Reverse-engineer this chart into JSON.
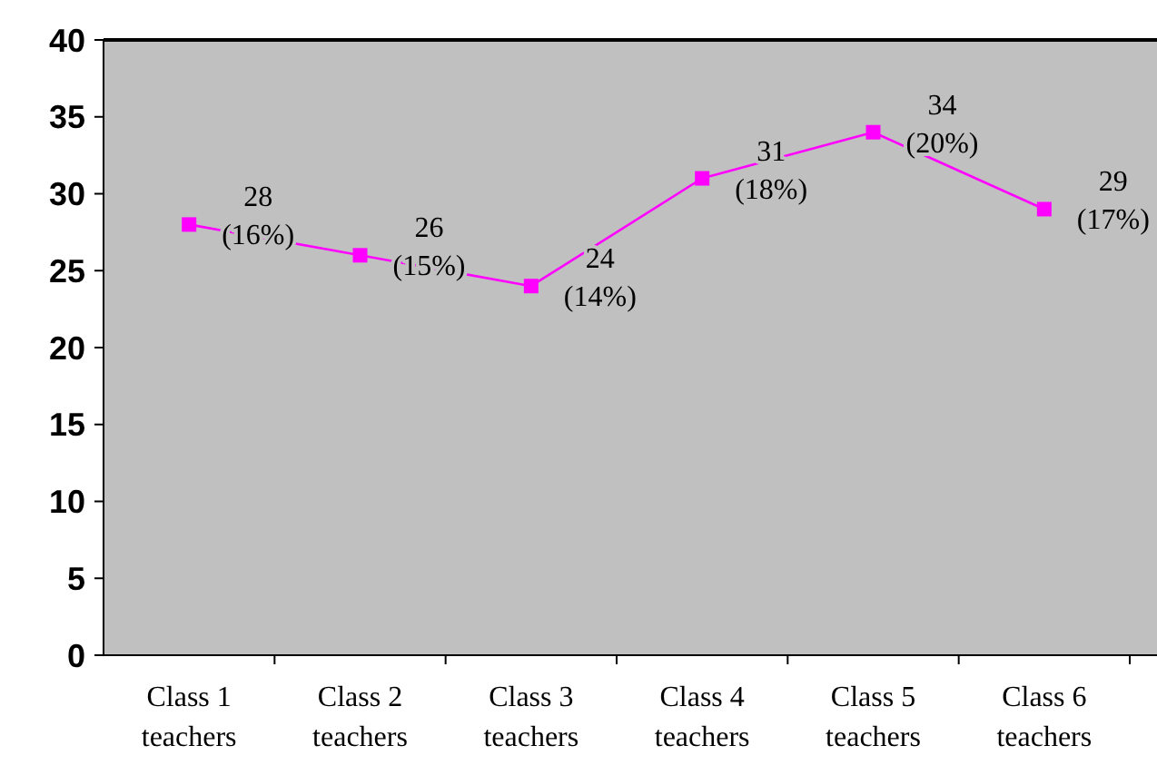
{
  "chart_data": {
    "type": "line",
    "categories": [
      "Class 1 teachers",
      "Class 2 teachers",
      "Class 3 teachers",
      "Class 4 teachers",
      "Class 5 teachers",
      "Class 6 teachers"
    ],
    "series": [
      {
        "color": "#ff00ff",
        "values": [
          28,
          26,
          24,
          31,
          34,
          29
        ],
        "value_labels": [
          "28 (16%)",
          "26 (15%)",
          "24 (14%)",
          "31 (18%)",
          "34 (20%)",
          "29 (17%)"
        ]
      }
    ],
    "ylim": [
      0,
      40
    ],
    "yticks": [
      0,
      5,
      10,
      15,
      20,
      25,
      30,
      35,
      40
    ],
    "marker": "square",
    "line_style": "solid"
  }
}
